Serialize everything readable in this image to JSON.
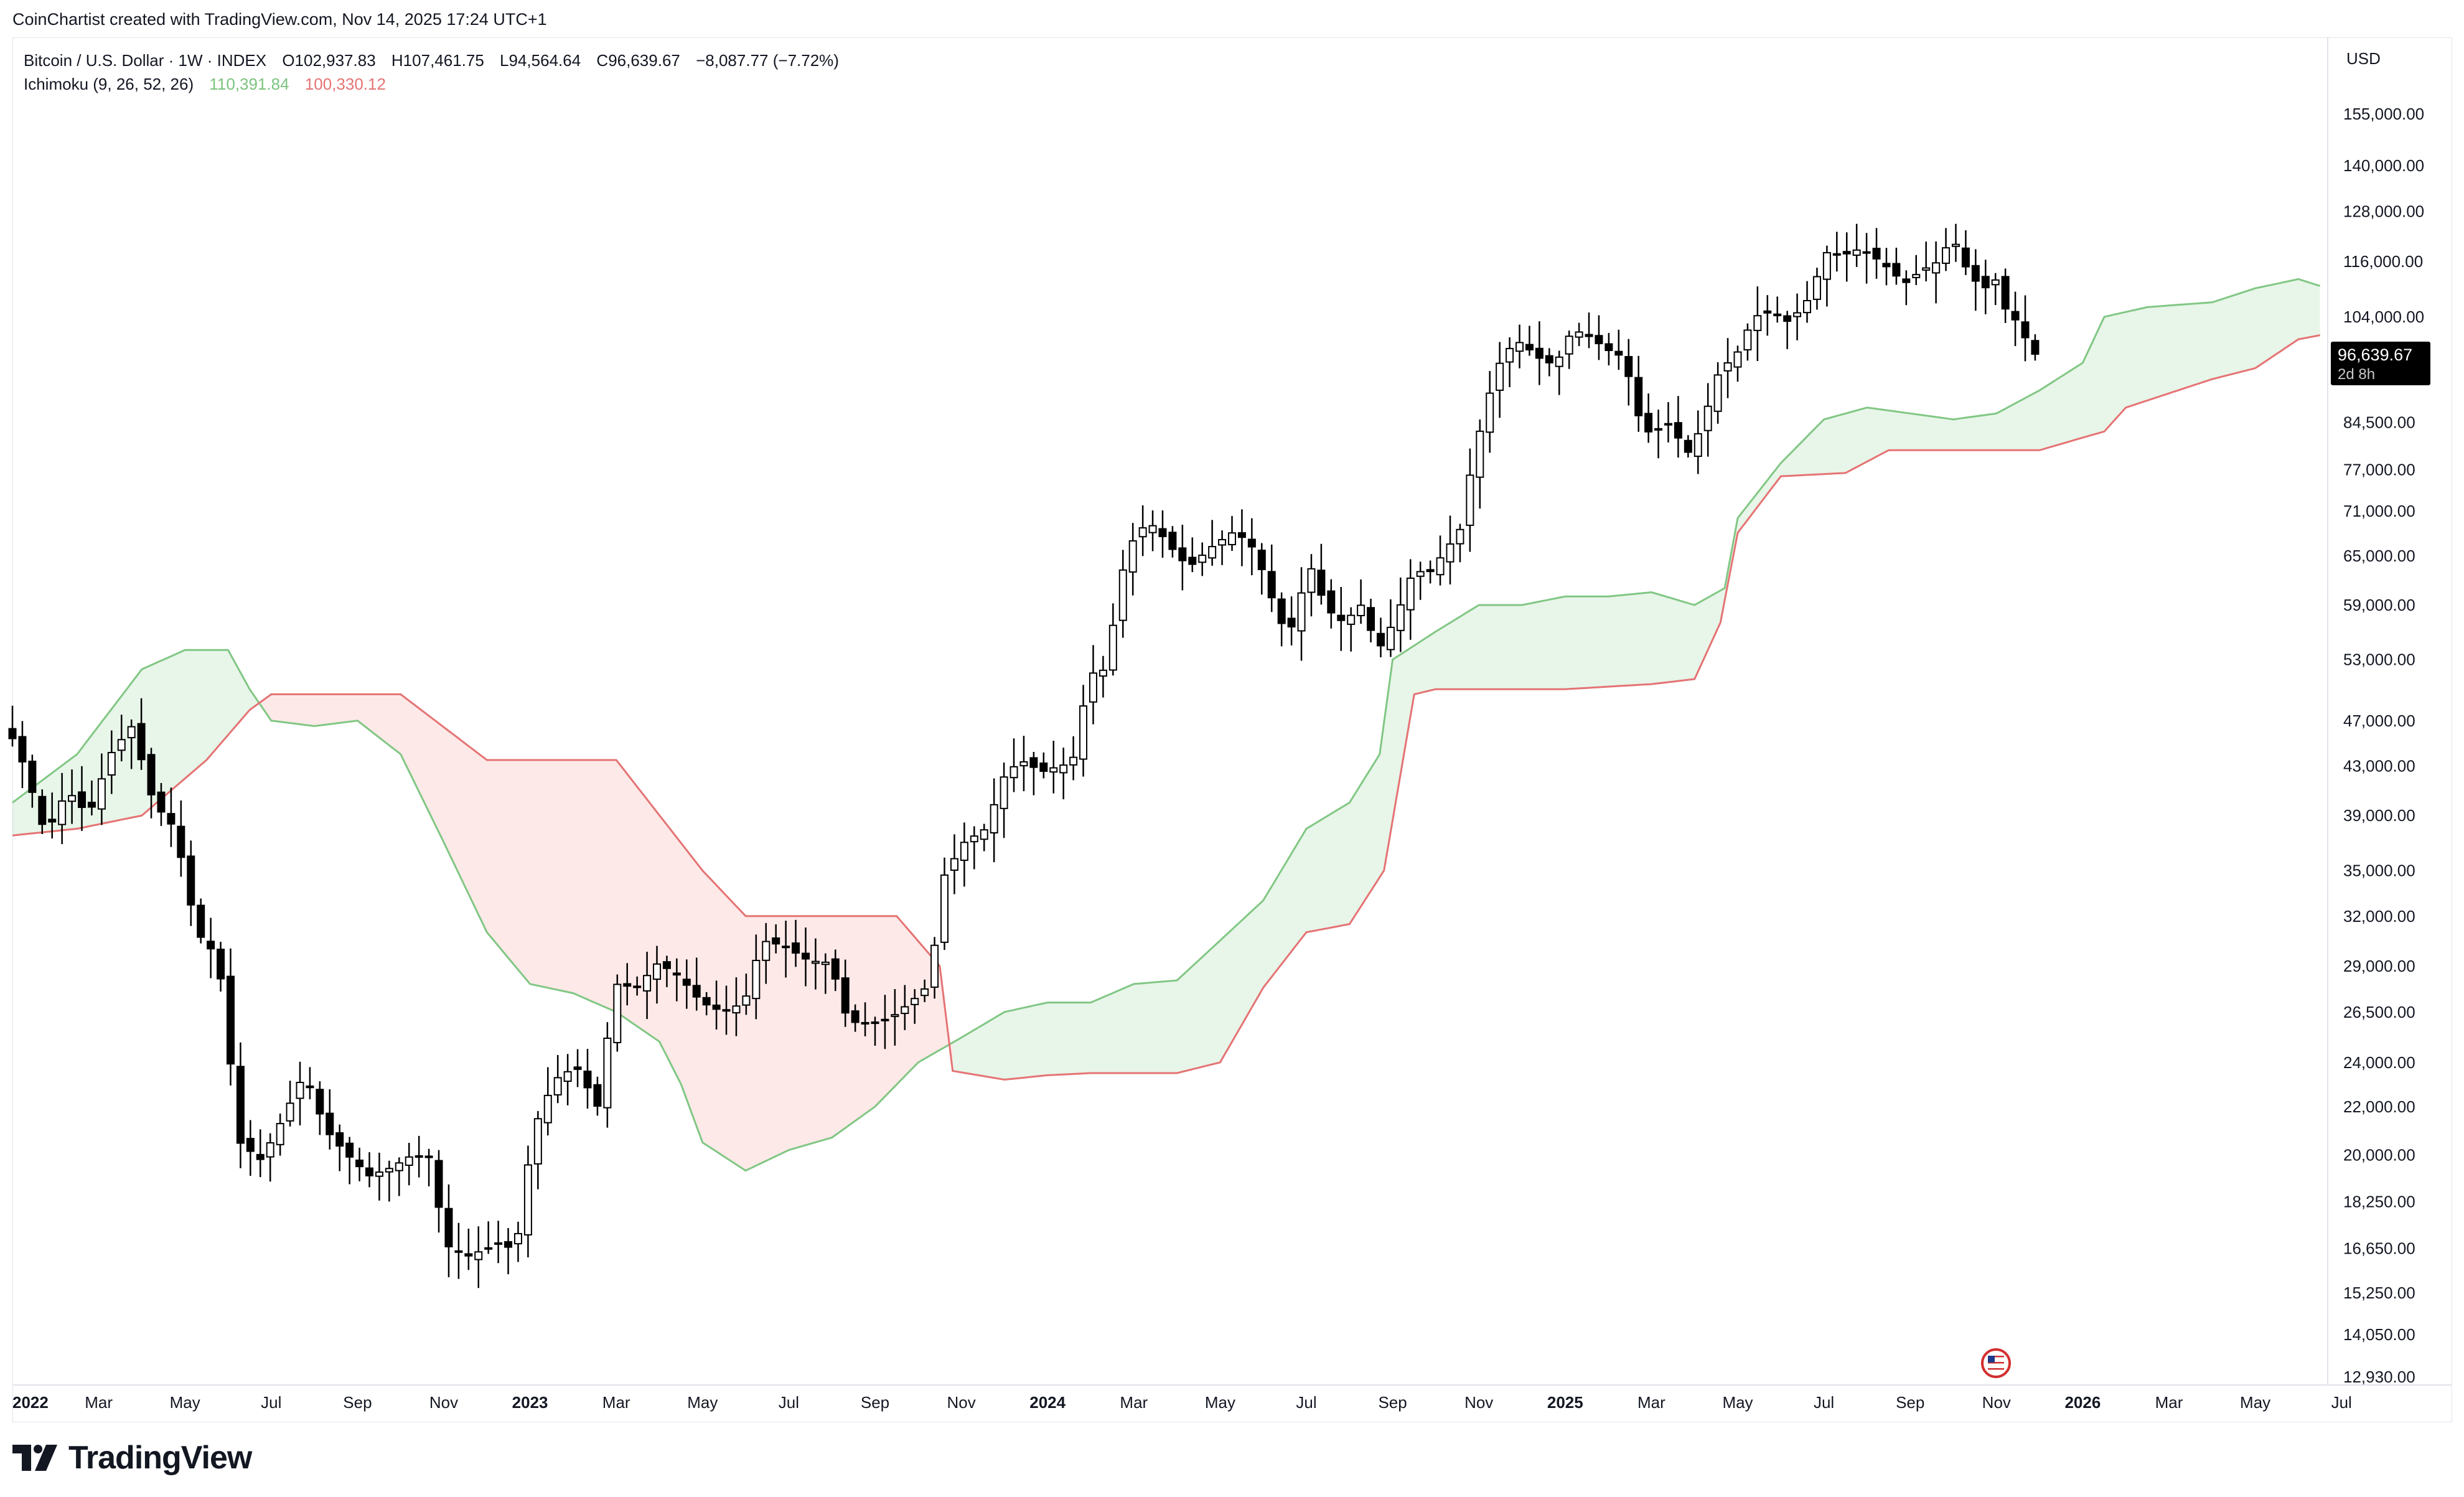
{
  "header": {
    "credit": "CoinChartist created with TradingView.com, Nov 14, 2025 17:24 UTC+1"
  },
  "legend": {
    "symbol": "Bitcoin / U.S. Dollar · 1W · INDEX",
    "open": "O102,937.83",
    "high": "H107,461.75",
    "low": "L94,564.64",
    "close": "C96,639.67",
    "change": "−8,087.77 (−7.72%)",
    "indicator": "Ichimoku (9, 26, 52, 26)",
    "ind_a": "110,391.84",
    "ind_b": "100,330.12"
  },
  "price_axis": {
    "currency": "USD",
    "last_price": "96,639.67",
    "countdown": "2d 8h",
    "ticks": [
      "155,000.00",
      "140,000.00",
      "128,000.00",
      "116,000.00",
      "104,000.00",
      "84,500.00",
      "77,000.00",
      "71,000.00",
      "65,000.00",
      "59,000.00",
      "53,000.00",
      "47,000.00",
      "43,000.00",
      "39,000.00",
      "35,000.00",
      "32,000.00",
      "29,000.00",
      "26,500.00",
      "24,000.00",
      "22,000.00",
      "20,000.00",
      "18,250.00",
      "16,650.00",
      "15,250.00",
      "14,050.00",
      "12,930.00"
    ]
  },
  "time_axis": {
    "labels": [
      {
        "text": "2022",
        "bold": true,
        "t": 0
      },
      {
        "text": "Mar",
        "bold": false,
        "t": 2
      },
      {
        "text": "May",
        "bold": false,
        "t": 4
      },
      {
        "text": "Jul",
        "bold": false,
        "t": 6
      },
      {
        "text": "Sep",
        "bold": false,
        "t": 8
      },
      {
        "text": "Nov",
        "bold": false,
        "t": 10
      },
      {
        "text": "2023",
        "bold": true,
        "t": 12
      },
      {
        "text": "Mar",
        "bold": false,
        "t": 14
      },
      {
        "text": "May",
        "bold": false,
        "t": 16
      },
      {
        "text": "Jul",
        "bold": false,
        "t": 18
      },
      {
        "text": "Sep",
        "bold": false,
        "t": 20
      },
      {
        "text": "Nov",
        "bold": false,
        "t": 22
      },
      {
        "text": "2024",
        "bold": true,
        "t": 24
      },
      {
        "text": "Mar",
        "bold": false,
        "t": 26
      },
      {
        "text": "May",
        "bold": false,
        "t": 28
      },
      {
        "text": "Jul",
        "bold": false,
        "t": 30
      },
      {
        "text": "Sep",
        "bold": false,
        "t": 32
      },
      {
        "text": "Nov",
        "bold": false,
        "t": 34
      },
      {
        "text": "2025",
        "bold": true,
        "t": 36
      },
      {
        "text": "Mar",
        "bold": false,
        "t": 38
      },
      {
        "text": "May",
        "bold": false,
        "t": 40
      },
      {
        "text": "Jul",
        "bold": false,
        "t": 42
      },
      {
        "text": "Sep",
        "bold": false,
        "t": 44
      },
      {
        "text": "Nov",
        "bold": false,
        "t": 46
      },
      {
        "text": "2026",
        "bold": true,
        "t": 48
      },
      {
        "text": "Mar",
        "bold": false,
        "t": 50
      },
      {
        "text": "May",
        "bold": false,
        "t": 52
      },
      {
        "text": "Jul",
        "bold": false,
        "t": 54
      }
    ]
  },
  "colors": {
    "candle_up": "#ffffff",
    "candle_down": "#000000",
    "wick": "#000000",
    "span_a": "#81c784",
    "span_b": "#e57373",
    "cloud_bull": "rgba(129,199,132,0.18)",
    "cloud_bear": "rgba(244,143,140,0.20)",
    "price_label_bg": "#000000",
    "grid": "#e0e3eb"
  },
  "brand": {
    "name": "TradingView"
  },
  "chart_data": {
    "type": "candlestick",
    "scale": "log",
    "ylim": [
      12930,
      165000
    ],
    "x_unit": "months since Jan 2022",
    "price_path": [
      [
        0,
        47500
      ],
      [
        0.5,
        43000
      ],
      [
        1,
        37500
      ],
      [
        1.5,
        41000
      ],
      [
        2,
        39000
      ],
      [
        2.5,
        44000
      ],
      [
        3,
        46500
      ],
      [
        3.5,
        40000
      ],
      [
        4,
        38000
      ],
      [
        4.5,
        31000
      ],
      [
        5,
        29500
      ],
      [
        5.5,
        20500
      ],
      [
        6,
        19800
      ],
      [
        6.5,
        21500
      ],
      [
        7,
        23500
      ],
      [
        7.5,
        21000
      ],
      [
        8,
        20000
      ],
      [
        8.5,
        19200
      ],
      [
        9,
        19500
      ],
      [
        9.5,
        20000
      ],
      [
        10,
        19900
      ],
      [
        10.2,
        16800
      ],
      [
        10.8,
        16400
      ],
      [
        11.5,
        16800
      ],
      [
        11.9,
        16600
      ],
      [
        12.3,
        21000
      ],
      [
        12.8,
        23200
      ],
      [
        13.3,
        23800
      ],
      [
        13.8,
        22000
      ],
      [
        14.2,
        28000
      ],
      [
        14.7,
        27800
      ],
      [
        15.2,
        29200
      ],
      [
        15.7,
        28400
      ],
      [
        16.2,
        27000
      ],
      [
        16.7,
        26500
      ],
      [
        17.2,
        27000
      ],
      [
        17.6,
        30500
      ],
      [
        18.1,
        30200
      ],
      [
        18.7,
        29300
      ],
      [
        19.2,
        29200
      ],
      [
        19.6,
        26000
      ],
      [
        20.1,
        25900
      ],
      [
        20.6,
        26200
      ],
      [
        21.1,
        27100
      ],
      [
        21.5,
        28000
      ],
      [
        21.8,
        34500
      ],
      [
        22.3,
        37000
      ],
      [
        22.8,
        38000
      ],
      [
        23.2,
        42000
      ],
      [
        23.6,
        43500
      ],
      [
        24.1,
        42500
      ],
      [
        24.5,
        43000
      ],
      [
        24.8,
        43200
      ],
      [
        25.2,
        51500
      ],
      [
        25.6,
        52000
      ],
      [
        25.9,
        62000
      ],
      [
        26.3,
        68500
      ],
      [
        26.7,
        69000
      ],
      [
        27.1,
        66000
      ],
      [
        27.5,
        63500
      ],
      [
        28,
        66000
      ],
      [
        28.5,
        68000
      ],
      [
        28.9,
        67000
      ],
      [
        29.3,
        62000
      ],
      [
        29.6,
        57000
      ],
      [
        29.9,
        56500
      ],
      [
        30.3,
        64000
      ],
      [
        30.7,
        58500
      ],
      [
        31.1,
        57000
      ],
      [
        31.5,
        59000
      ],
      [
        31.9,
        54000
      ],
      [
        32.3,
        57500
      ],
      [
        32.7,
        63000
      ],
      [
        33.1,
        63000
      ],
      [
        33.5,
        66000
      ],
      [
        33.8,
        68500
      ],
      [
        34.1,
        79000
      ],
      [
        34.5,
        90000
      ],
      [
        34.8,
        97000
      ],
      [
        35.2,
        99000
      ],
      [
        35.6,
        96000
      ],
      [
        36,
        94500
      ],
      [
        36.4,
        101500
      ],
      [
        36.8,
        100000
      ],
      [
        37.2,
        97500
      ],
      [
        37.6,
        96000
      ],
      [
        37.9,
        86000
      ],
      [
        38.2,
        82500
      ],
      [
        38.6,
        84500
      ],
      [
        39.1,
        79500
      ],
      [
        39.4,
        84000
      ],
      [
        39.8,
        93500
      ],
      [
        40.2,
        96500
      ],
      [
        40.6,
        104000
      ],
      [
        41,
        105000
      ],
      [
        41.4,
        103000
      ],
      [
        41.8,
        106500
      ],
      [
        42.3,
        118000
      ],
      [
        42.7,
        117500
      ],
      [
        43.1,
        119000
      ],
      [
        43.6,
        115500
      ],
      [
        44.1,
        111000
      ],
      [
        44.5,
        114000
      ],
      [
        44.9,
        116000
      ],
      [
        45.2,
        122000
      ],
      [
        45.5,
        115000
      ],
      [
        45.9,
        109500
      ],
      [
        46.2,
        112000
      ],
      [
        46.5,
        104000
      ],
      [
        46.8,
        102900
      ],
      [
        47,
        96640
      ]
    ],
    "span_a_points": [
      [
        0,
        40000
      ],
      [
        1.5,
        44000
      ],
      [
        3,
        52000
      ],
      [
        4,
        54000
      ],
      [
        5,
        54000
      ],
      [
        5.5,
        50000
      ],
      [
        6,
        47000
      ],
      [
        7,
        46500
      ],
      [
        8,
        47000
      ],
      [
        9,
        44000
      ],
      [
        10,
        37000
      ],
      [
        11,
        31000
      ],
      [
        12,
        28000
      ],
      [
        13,
        27500
      ],
      [
        14,
        26500
      ],
      [
        15,
        25000
      ],
      [
        15.5,
        23000
      ],
      [
        16,
        20500
      ],
      [
        17,
        19400
      ],
      [
        18,
        20200
      ],
      [
        19,
        20700
      ],
      [
        20,
        22000
      ],
      [
        21,
        24000
      ],
      [
        22,
        25200
      ],
      [
        23,
        26500
      ],
      [
        24,
        27000
      ],
      [
        25,
        27000
      ],
      [
        26,
        28000
      ],
      [
        27,
        28200
      ],
      [
        28,
        30500
      ],
      [
        29,
        33000
      ],
      [
        30,
        38000
      ],
      [
        31,
        40000
      ],
      [
        31.7,
        44000
      ],
      [
        32,
        53000
      ],
      [
        33,
        56000
      ],
      [
        34,
        59000
      ],
      [
        35,
        59000
      ],
      [
        36,
        60000
      ],
      [
        37,
        60000
      ],
      [
        38,
        60500
      ],
      [
        39,
        59000
      ],
      [
        39.7,
        61000
      ],
      [
        40,
        70000
      ],
      [
        41,
        78000
      ],
      [
        42,
        85000
      ],
      [
        43,
        87000
      ],
      [
        44,
        86000
      ],
      [
        45,
        85000
      ],
      [
        46,
        86000
      ],
      [
        47,
        90000
      ],
      [
        48,
        95000
      ],
      [
        48.5,
        104000
      ],
      [
        49.5,
        106000
      ],
      [
        51,
        107000
      ],
      [
        52,
        110000
      ],
      [
        53,
        112000
      ],
      [
        53.5,
        110500
      ]
    ],
    "span_b_points": [
      [
        0,
        37500
      ],
      [
        1.5,
        38000
      ],
      [
        3,
        39000
      ],
      [
        4.5,
        43500
      ],
      [
        5.5,
        48000
      ],
      [
        6,
        49500
      ],
      [
        9,
        49500
      ],
      [
        11,
        43500
      ],
      [
        14,
        43500
      ],
      [
        16,
        35000
      ],
      [
        17,
        32000
      ],
      [
        20.5,
        32000
      ],
      [
        21.5,
        29000
      ],
      [
        21.8,
        23600
      ],
      [
        23,
        23200
      ],
      [
        24,
        23400
      ],
      [
        25,
        23500
      ],
      [
        27,
        23500
      ],
      [
        28,
        24000
      ],
      [
        29,
        27800
      ],
      [
        30,
        31000
      ],
      [
        31,
        31500
      ],
      [
        31.8,
        35000
      ],
      [
        32.5,
        49500
      ],
      [
        33,
        50000
      ],
      [
        34,
        50000
      ],
      [
        36,
        50000
      ],
      [
        38,
        50500
      ],
      [
        39,
        51000
      ],
      [
        39.6,
        57000
      ],
      [
        40,
        68000
      ],
      [
        41,
        76000
      ],
      [
        42.5,
        76500
      ],
      [
        43.5,
        80000
      ],
      [
        45,
        80000
      ],
      [
        46,
        80000
      ],
      [
        47,
        80000
      ],
      [
        48,
        82000
      ],
      [
        48.5,
        83000
      ],
      [
        49,
        87000
      ],
      [
        51,
        92000
      ],
      [
        52,
        94000
      ],
      [
        53,
        99500
      ],
      [
        53.5,
        100300
      ]
    ]
  }
}
